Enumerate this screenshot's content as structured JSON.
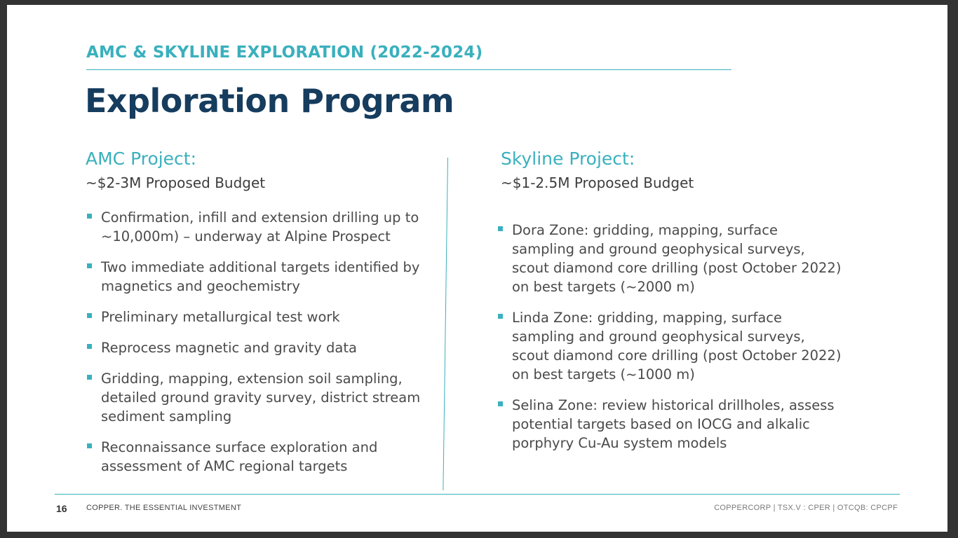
{
  "header": {
    "kicker": "AMC & SKYLINE EXPLORATION (2022-2024)",
    "title": "Exploration Program"
  },
  "left_column": {
    "heading": "AMC Project:",
    "budget": "~$2-3M Proposed Budget",
    "bullets": [
      "Confirmation, infill and extension drilling up to ~10,000m) – underway at Alpine Prospect",
      "Two immediate additional targets identified by magnetics and geochemistry",
      "Preliminary metallurgical test work",
      "Reprocess magnetic and gravity data",
      "Gridding, mapping, extension soil sampling, detailed ground gravity survey, district stream sediment sampling",
      "Reconnaissance surface exploration and assessment of AMC regional targets"
    ]
  },
  "right_column": {
    "heading": "Skyline Project:",
    "budget": "~$1-2.5M Proposed Budget",
    "bullets": [
      "Dora Zone: gridding, mapping, surface sampling and ground geophysical surveys, scout diamond core drilling (post October 2022) on best targets (~2000 m)",
      "Linda Zone: gridding, mapping, surface sampling and ground geophysical surveys, scout diamond core drilling (post October 2022) on best targets (~1000 m)",
      "Selina Zone: review historical drillholes, assess potential targets based on IOCG and alkalic porphyry Cu-Au system models"
    ]
  },
  "footer": {
    "page_number": "16",
    "tagline": "COPPER. THE ESSENTIAL INVESTMENT",
    "ticker": "COPPERCORP | TSX.V : CPER | OTCQB: CPCPF"
  },
  "colors": {
    "accent": "#3ab0bd",
    "title": "#163c5e",
    "body_text": "#4a4a4a"
  }
}
